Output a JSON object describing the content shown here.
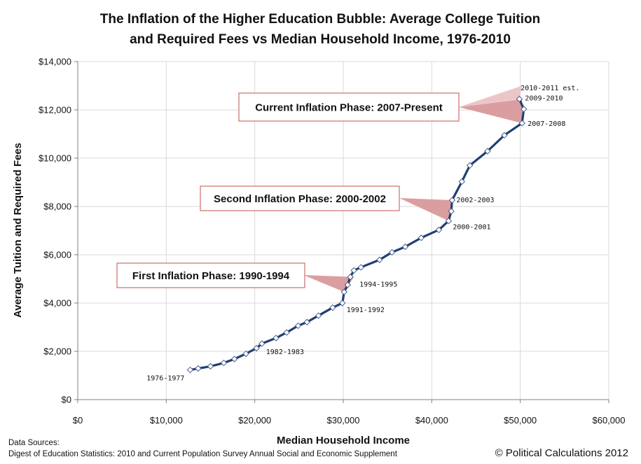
{
  "chart_data": {
    "type": "line",
    "title_lines": [
      "The Inflation of the Higher Education Bubble: Average College Tuition",
      "and Required Fees vs Median Household Income, 1976-2010"
    ],
    "xlabel": "Median Household Income",
    "ylabel": "Average Tuition and Required Fees",
    "xlim": [
      0,
      60000
    ],
    "ylim": [
      0,
      14000
    ],
    "x_ticks": [
      0,
      10000,
      20000,
      30000,
      40000,
      50000,
      60000
    ],
    "y_ticks": [
      0,
      2000,
      4000,
      6000,
      8000,
      10000,
      12000,
      14000
    ],
    "x_tick_labels": [
      "$0",
      "$10,000",
      "$20,000",
      "$30,000",
      "$40,000",
      "$50,000",
      "$60,000"
    ],
    "y_tick_labels": [
      "$0",
      "$2,000",
      "$4,000",
      "$6,000",
      "$8,000",
      "$10,000",
      "$12,000",
      "$14,000"
    ],
    "grid": true,
    "line_color": "#1f3f73",
    "marker_fill": "#ffffff",
    "marker_stroke": "#4a5f8a",
    "callout_fill": "#d9999b",
    "callout_fill_light": "#ecc6c7",
    "callout_border": "#c0504d",
    "series": [
      {
        "name": "Average Tuition and Required Fees vs Median Household Income",
        "x": [
          12700,
          13600,
          15000,
          16500,
          17700,
          19000,
          20200,
          20800,
          22400,
          23600,
          24900,
          25900,
          27200,
          28800,
          29900,
          30100,
          30500,
          30800,
          31200,
          32000,
          34100,
          35500,
          37000,
          38800,
          40800,
          41900,
          42200,
          42300,
          43400,
          44300,
          46300,
          48200,
          50200,
          50400,
          49900
        ],
        "y": [
          1230,
          1290,
          1380,
          1520,
          1680,
          1900,
          2130,
          2320,
          2550,
          2780,
          3060,
          3210,
          3480,
          3810,
          4000,
          4460,
          4750,
          5080,
          5350,
          5480,
          5790,
          6100,
          6330,
          6700,
          7030,
          7400,
          7800,
          8260,
          9030,
          9700,
          10290,
          10950,
          11450,
          12030,
          12450
        ]
      }
    ],
    "point_labels": [
      {
        "text": "1976-1977",
        "x": 12700,
        "y": 1230
      },
      {
        "text": "1982-1983",
        "x": 20800,
        "y": 2320
      },
      {
        "text": "1991-1992",
        "x": 29900,
        "y": 4000
      },
      {
        "text": "1994-1995",
        "x": 31200,
        "y": 5080
      },
      {
        "text": "2000-2001",
        "x": 41900,
        "y": 7400
      },
      {
        "text": "2002-2003",
        "x": 42300,
        "y": 8260
      },
      {
        "text": "2007-2008",
        "x": 50200,
        "y": 11450
      },
      {
        "text": "2009-2010",
        "x": 49900,
        "y": 12450
      },
      {
        "text": "2010-2011 est.",
        "x": 50200,
        "y": 13100
      }
    ],
    "annotations": [
      {
        "text": "First Inflation Phase: 1990-1994",
        "start_year": 1990,
        "end_year": 1994
      },
      {
        "text": "Second Inflation Phase: 2000-2002",
        "start_year": 2000,
        "end_year": 2002
      },
      {
        "text": "Current Inflation Phase: 2007-Present",
        "start_year": 2007,
        "end_year": 2010
      }
    ]
  },
  "footer": {
    "sources_heading": "Data Sources:",
    "sources_text": "Digest of Education Statistics: 2010 and Current Population Survey Annual Social and Economic Supplement",
    "credit": "© Political Calculations 2012"
  }
}
